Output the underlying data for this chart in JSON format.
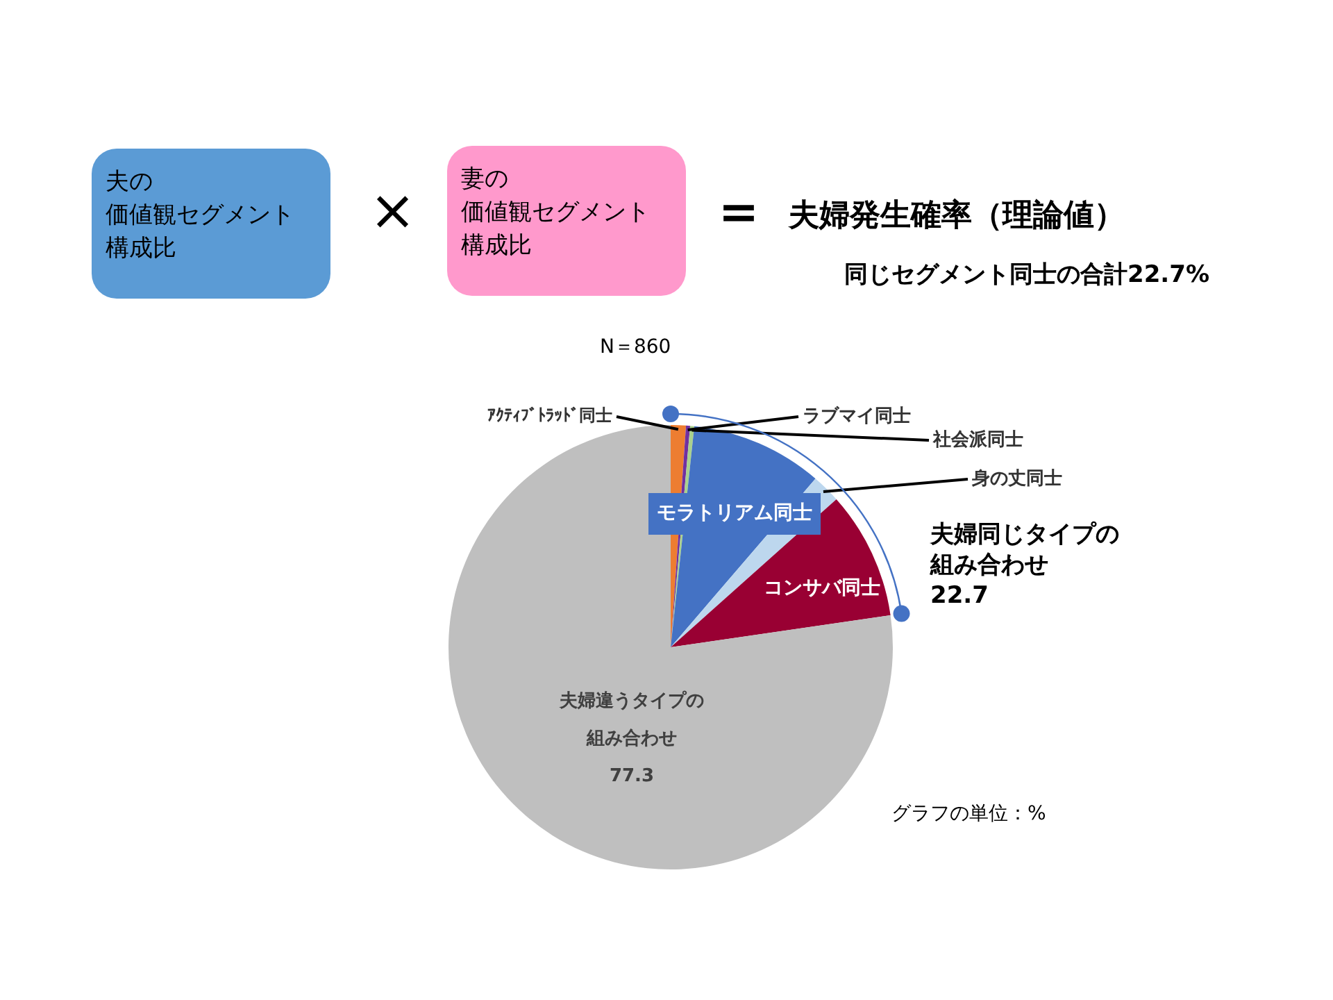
{
  "chart_data": {
    "type": "pie",
    "title": "夫婦発生確率（理論値）",
    "subtitle": "同じセグメント同士の合計22.7%",
    "categories": [
      "ｱｸﾃｨﾌﾞﾄﾗｯﾄﾞ同士",
      "ラブマイ同士",
      "社会派同士",
      "モラトリアム同士",
      "身の丈同士",
      "コンサバ同士",
      "夫婦違うタイプの組み合わせ"
    ],
    "values": [
      1.1,
      0.3,
      0.3,
      9.6,
      2.1,
      9.3,
      77.3
    ],
    "colors": [
      "#ed7d31",
      "#7030a0",
      "#a9d18e",
      "#4472c4",
      "#bdd7ee",
      "#990033",
      "#bfbfbf"
    ],
    "value_labels": [
      null,
      null,
      null,
      null,
      null,
      null,
      "77.3"
    ],
    "annotations": [
      "夫の",
      "価値観セグメント",
      "構成比",
      "×",
      "妻の",
      "価値観セグメント",
      "構成比",
      "＝",
      "N＝860",
      "夫婦同じタイプの",
      "組み合わせ",
      "22.7",
      "グラフの単位：%"
    ]
  }
}
